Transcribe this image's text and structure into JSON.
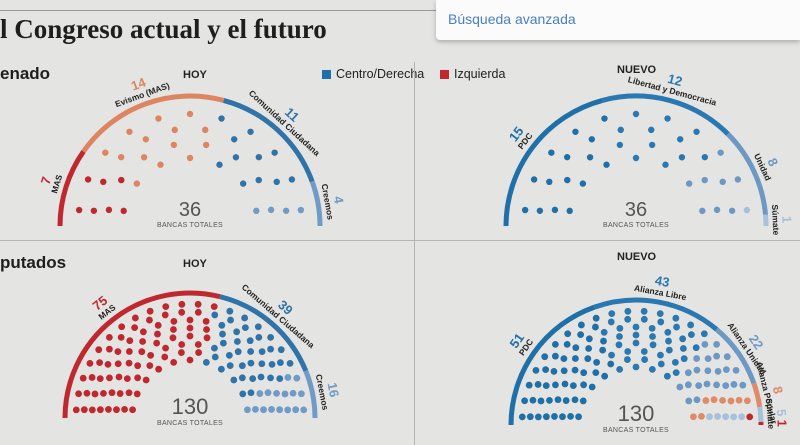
{
  "page": {
    "title": "l Congreso actual y el futuro",
    "search_link": "Búsqueda avanzada",
    "section_senate": "enado",
    "section_deputies": "putados",
    "label_hoy": "HOY",
    "label_nuevo": "NUEVO",
    "legend": [
      {
        "label": "Centro/Derecha",
        "color": "#1f6fa8"
      },
      {
        "label": "Izquierda",
        "color": "#c0282f"
      }
    ]
  },
  "chart_data": [
    {
      "type": "parliament",
      "name": "Senado HOY",
      "total": "36",
      "total_label": "BANCAS TOTALES",
      "series": [
        {
          "name": "MAS",
          "value": 7,
          "color": "#c0282f"
        },
        {
          "name": "Evismo (MAS)",
          "value": 14,
          "color": "#dc8560"
        },
        {
          "name": "Comunidad Ciudadana",
          "value": 11,
          "color": "#2f73a8"
        },
        {
          "name": "Creemos",
          "value": 4,
          "color": "#6f9bc6"
        }
      ]
    },
    {
      "type": "parliament",
      "name": "Senado NUEVO",
      "total": "36",
      "total_label": "BANCAS TOTALES",
      "series": [
        {
          "name": "PDC",
          "value": 15,
          "color": "#1f6fa8"
        },
        {
          "name": "Libertad y Democracia",
          "value": 12,
          "color": "#2a78b2"
        },
        {
          "name": "Unidad",
          "value": 8,
          "color": "#6c98c4"
        },
        {
          "name": "Súmate",
          "value": 1,
          "color": "#a8c1db"
        }
      ]
    },
    {
      "type": "parliament",
      "name": "Diputados HOY",
      "total": "130",
      "total_label": "BANCAS TOTALES",
      "series": [
        {
          "name": "MAS",
          "value": 75,
          "color": "#c0282f"
        },
        {
          "name": "Comunidad Ciudadana",
          "value": 39,
          "color": "#2f73a8"
        },
        {
          "name": "Creemos",
          "value": 16,
          "color": "#6f9bc6"
        }
      ]
    },
    {
      "type": "parliament",
      "name": "Diputados NUEVO",
      "total": "130",
      "total_label": "BANCAS TOTALES",
      "series": [
        {
          "name": "PDC",
          "value": 51,
          "color": "#1f6fa8"
        },
        {
          "name": "Alianza Libre",
          "value": 43,
          "color": "#2a78b2"
        },
        {
          "name": "Alianza Unidad",
          "value": 22,
          "color": "#6c98c4"
        },
        {
          "name": "Alianza Popular",
          "value": 8,
          "color": "#e08a6a"
        },
        {
          "name": "Súmate",
          "value": 5,
          "color": "#a8c1db"
        },
        {
          "name": "",
          "value": 1,
          "color": "#c0282f"
        }
      ]
    }
  ]
}
